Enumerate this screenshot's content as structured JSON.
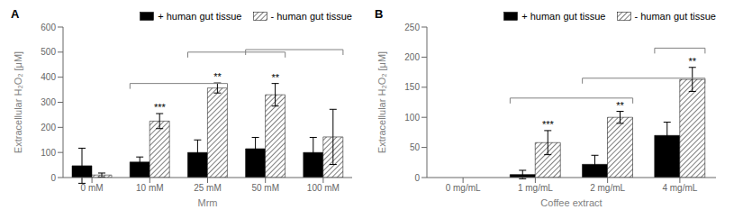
{
  "chart_data": [
    {
      "type": "bar",
      "title": "A",
      "xlabel": "Mrm",
      "ylabel": "Extracellular H₂O₂ [μM]",
      "categories": [
        "0 mM",
        "10 mM",
        "25 mM",
        "50 mM",
        "100 mM"
      ],
      "series": [
        {
          "name": "+ human gut tissue",
          "color": "#000000",
          "values": [
            47,
            62,
            100,
            115,
            100
          ],
          "errors": [
            70,
            20,
            50,
            45,
            60
          ]
        },
        {
          "name": "- human gut tissue",
          "color": "#ffffff",
          "values": [
            10,
            225,
            357,
            330,
            162
          ],
          "errors": [
            8,
            30,
            20,
            45,
            110
          ]
        }
      ],
      "ylim": [
        0,
        600
      ],
      "yticks": [
        0,
        100,
        200,
        300,
        400,
        500,
        600
      ],
      "brackets": [
        {
          "from": "10 mM",
          "to": "25 mM",
          "y": 375
        },
        {
          "from": "25 mM",
          "to": "50 mM",
          "y": 500
        },
        {
          "from": "50 mM",
          "to": "100 mM",
          "y": 510
        }
      ],
      "annotations": [
        {
          "category": "10 mM",
          "text": "***"
        },
        {
          "category": "25 mM",
          "text": "**"
        },
        {
          "category": "50 mM",
          "text": "**"
        }
      ],
      "legend": "upper right"
    },
    {
      "type": "bar",
      "title": "B",
      "xlabel": "Coffee extract",
      "ylabel": "Extracellular H₂O₂ [μM]",
      "categories": [
        "0 mg/mL",
        "1 mg/mL",
        "2 mg/mL",
        "4 mg/mL"
      ],
      "series": [
        {
          "name": "+ human gut tissue",
          "color": "#000000",
          "values": [
            0,
            5,
            22,
            70
          ],
          "errors": [
            0,
            7,
            15,
            22
          ]
        },
        {
          "name": "- human gut tissue",
          "color": "#ffffff",
          "values": [
            0,
            58,
            100,
            163
          ],
          "errors": [
            0,
            20,
            10,
            20
          ]
        }
      ],
      "ylim": [
        0,
        250
      ],
      "yticks": [
        0,
        50,
        100,
        150,
        200,
        250
      ],
      "brackets": [
        {
          "from": "1 mg/mL",
          "to": "2 mg/mL",
          "y": 132
        },
        {
          "from": "2 mg/mL",
          "to": "4 mg/mL",
          "y": 165
        },
        {
          "from": "4 mg/mL",
          "to": "4 mg/mL",
          "y": 215
        }
      ],
      "annotations": [
        {
          "category": "1 mg/mL",
          "text": "***"
        },
        {
          "category": "2 mg/mL",
          "text": "**"
        },
        {
          "category": "4 mg/mL",
          "text": "**"
        }
      ],
      "legend": "upper right"
    }
  ]
}
